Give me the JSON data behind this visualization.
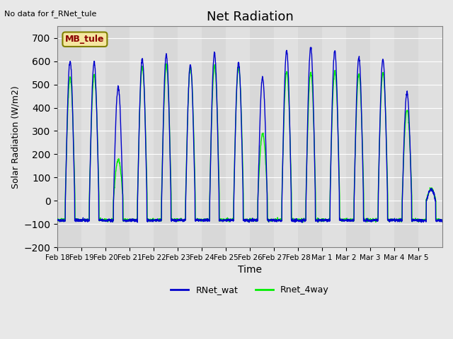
{
  "title": "Net Radiation",
  "xlabel": "Time",
  "ylabel": "Solar Radiation (W/m2)",
  "ylim": [
    -200,
    750
  ],
  "yticks": [
    -200,
    -100,
    0,
    100,
    200,
    300,
    400,
    500,
    600,
    700
  ],
  "note": "No data for f_RNet_tule",
  "legend_box_label": "MB_tule",
  "line1_label": "RNet_wat",
  "line1_color": "#0000cc",
  "line2_label": "Rnet_4way",
  "line2_color": "#00ee00",
  "background_color": "#e8e8e8",
  "plot_bg_color": "#e0e0e0",
  "date_labels": [
    "Feb 18",
    "Feb 19",
    "Feb 20",
    "Feb 21",
    "Feb 22",
    "Feb 23",
    "Feb 24",
    "Feb 25",
    "Feb 26",
    "Feb 27",
    "Feb 28",
    "Mar 1",
    "Mar 2",
    "Mar 3",
    "Mar 4",
    "Mar 5"
  ],
  "n_days": 16,
  "peaks_blue": [
    600,
    595,
    490,
    610,
    630,
    585,
    635,
    595,
    530,
    645,
    660,
    645,
    615,
    610,
    465,
    50
  ],
  "peaks_green": [
    530,
    540,
    175,
    575,
    580,
    575,
    580,
    575,
    290,
    555,
    555,
    555,
    545,
    550,
    390,
    50
  ]
}
